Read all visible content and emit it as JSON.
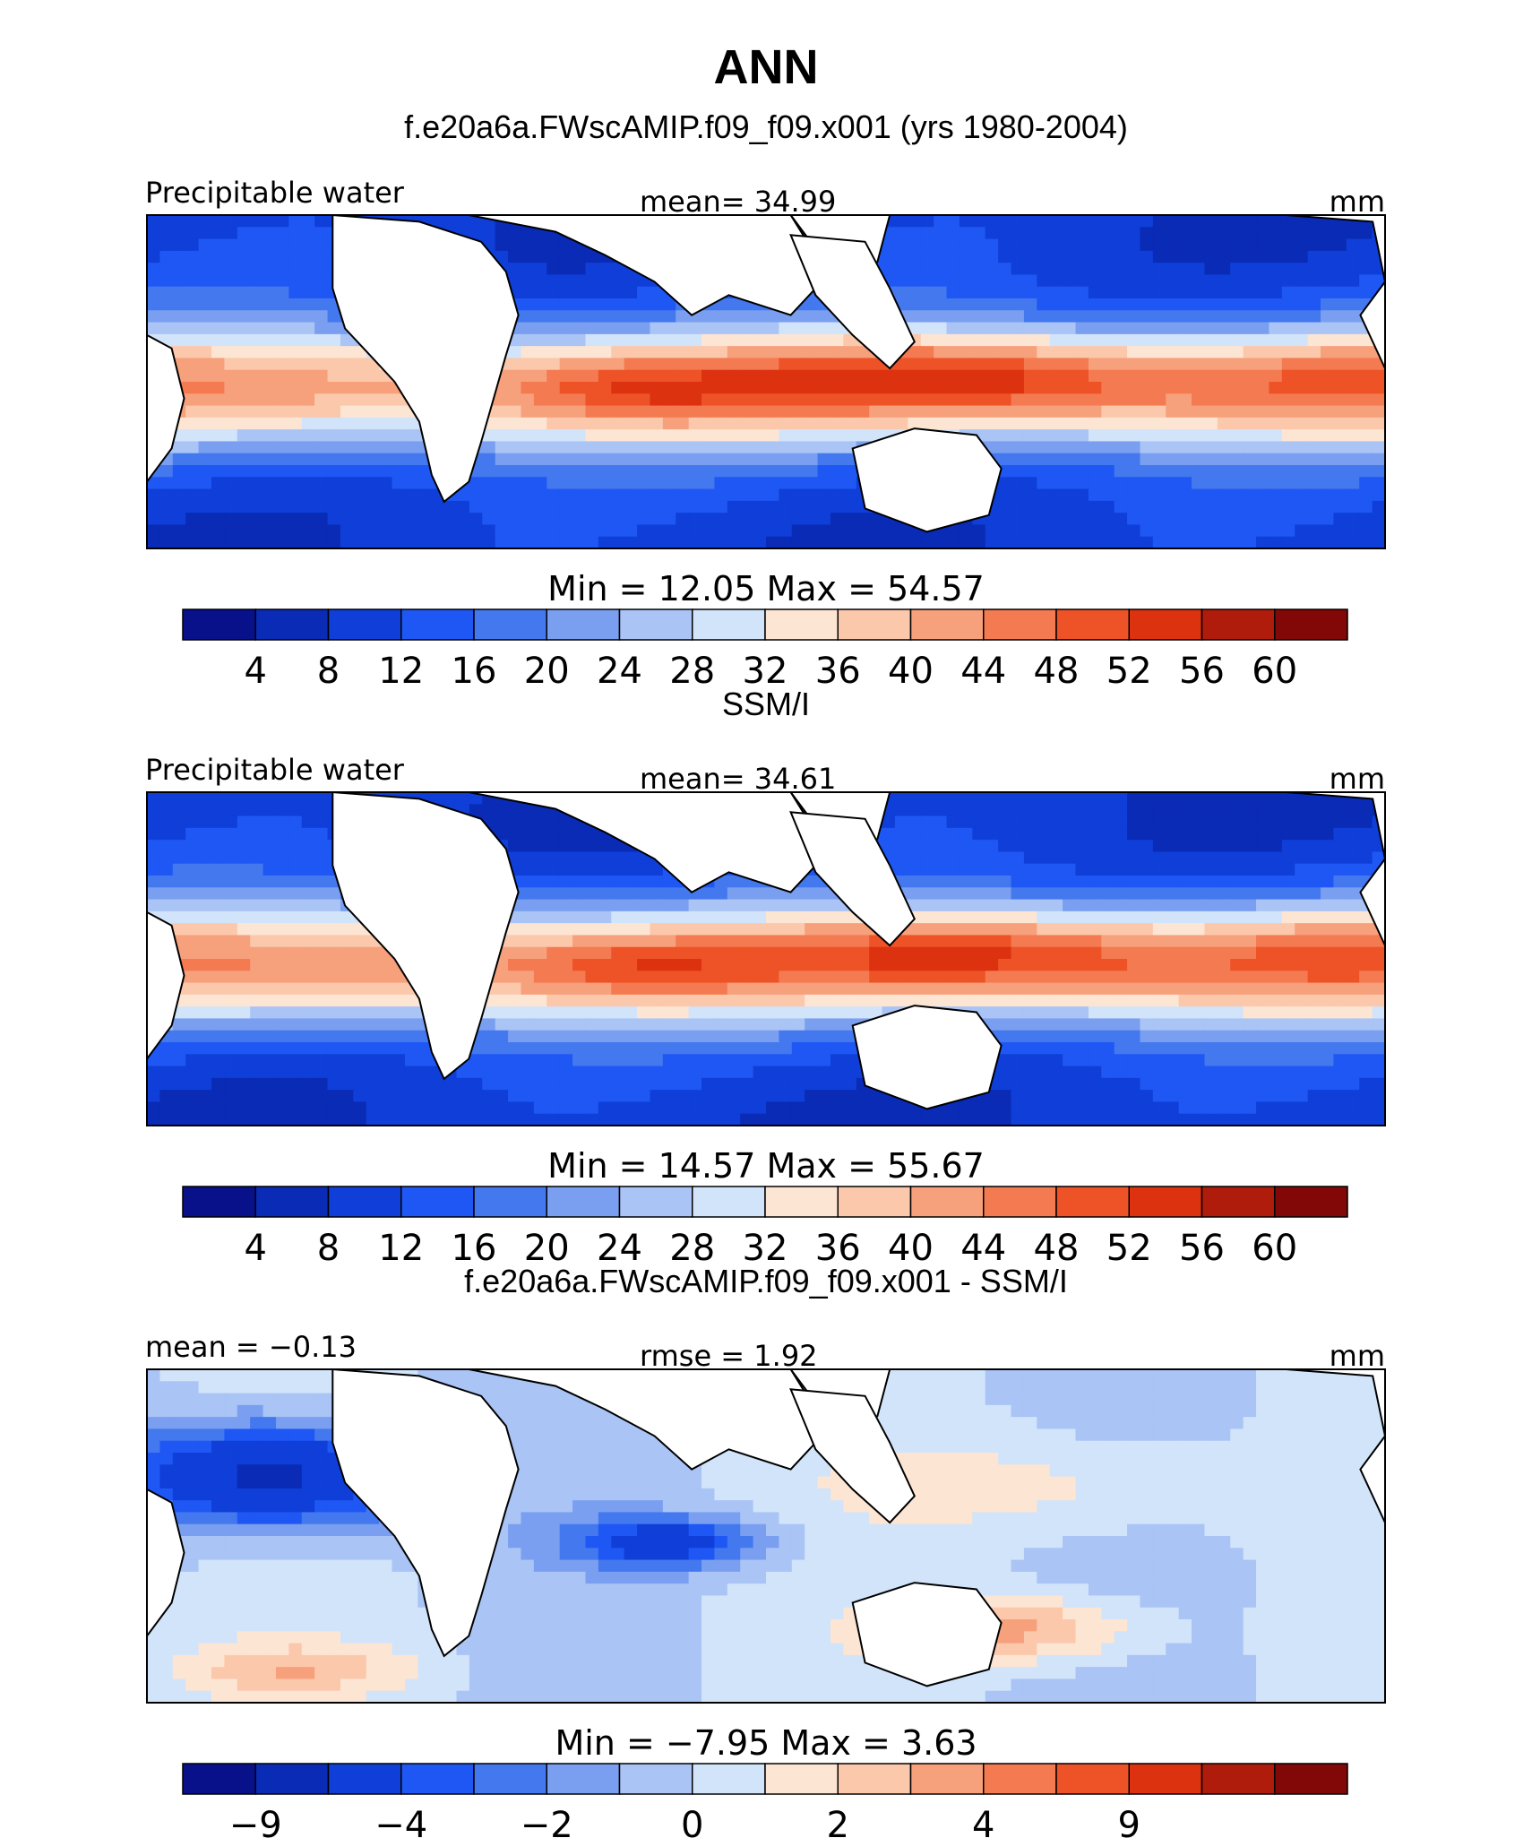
{
  "title": "ANN",
  "panels": [
    {
      "heading": "f.e20a6a.FWscAMIP.f09_f09.x001 (yrs 1980-2004)",
      "left_label": "Precipitable water",
      "center_label": "mean=   34.99",
      "right_label": "mm",
      "minmax": "Min  =   12.05  Max  =    54.57",
      "colorbar_ticks": [
        "4",
        "8",
        "12",
        "16",
        "20",
        "24",
        "28",
        "32",
        "36",
        "40",
        "44",
        "48",
        "52",
        "56",
        "60"
      ],
      "field": "model"
    },
    {
      "heading": "SSM/I",
      "left_label": "Precipitable water",
      "center_label": "mean=   34.61",
      "right_label": "mm",
      "minmax": "Min  =   14.57  Max  =    55.67",
      "colorbar_ticks": [
        "4",
        "8",
        "12",
        "16",
        "20",
        "24",
        "28",
        "32",
        "36",
        "40",
        "44",
        "48",
        "52",
        "56",
        "60"
      ],
      "field": "obs"
    },
    {
      "heading": "f.e20a6a.FWscAMIP.f09_f09.x001 - SSM/I",
      "left_label": "mean =   −0.13",
      "center_label": "rmse =     1.92",
      "right_label": "mm",
      "minmax": "Min  =   −7.95  Max  =      3.63",
      "colorbar_ticks": [
        "−9",
        "",
        "−4",
        "",
        "−2",
        "",
        "0",
        "",
        "2",
        "",
        "4",
        "",
        "9",
        "",
        ""
      ],
      "field": "diff"
    }
  ],
  "colorbar_colors": [
    "#08108a",
    "#0a2bb6",
    "#0f3fd8",
    "#1f57f4",
    "#4478ee",
    "#7a9ff0",
    "#a9c4f5",
    "#d2e4fa",
    "#fde5d3",
    "#fbc8ac",
    "#f7a07c",
    "#f47a51",
    "#ee5327",
    "#dc3210",
    "#b01c0c",
    "#820808"
  ],
  "colors": {
    "land": "#ffffff",
    "coast": "#000000",
    "frame": "#000000"
  }
}
